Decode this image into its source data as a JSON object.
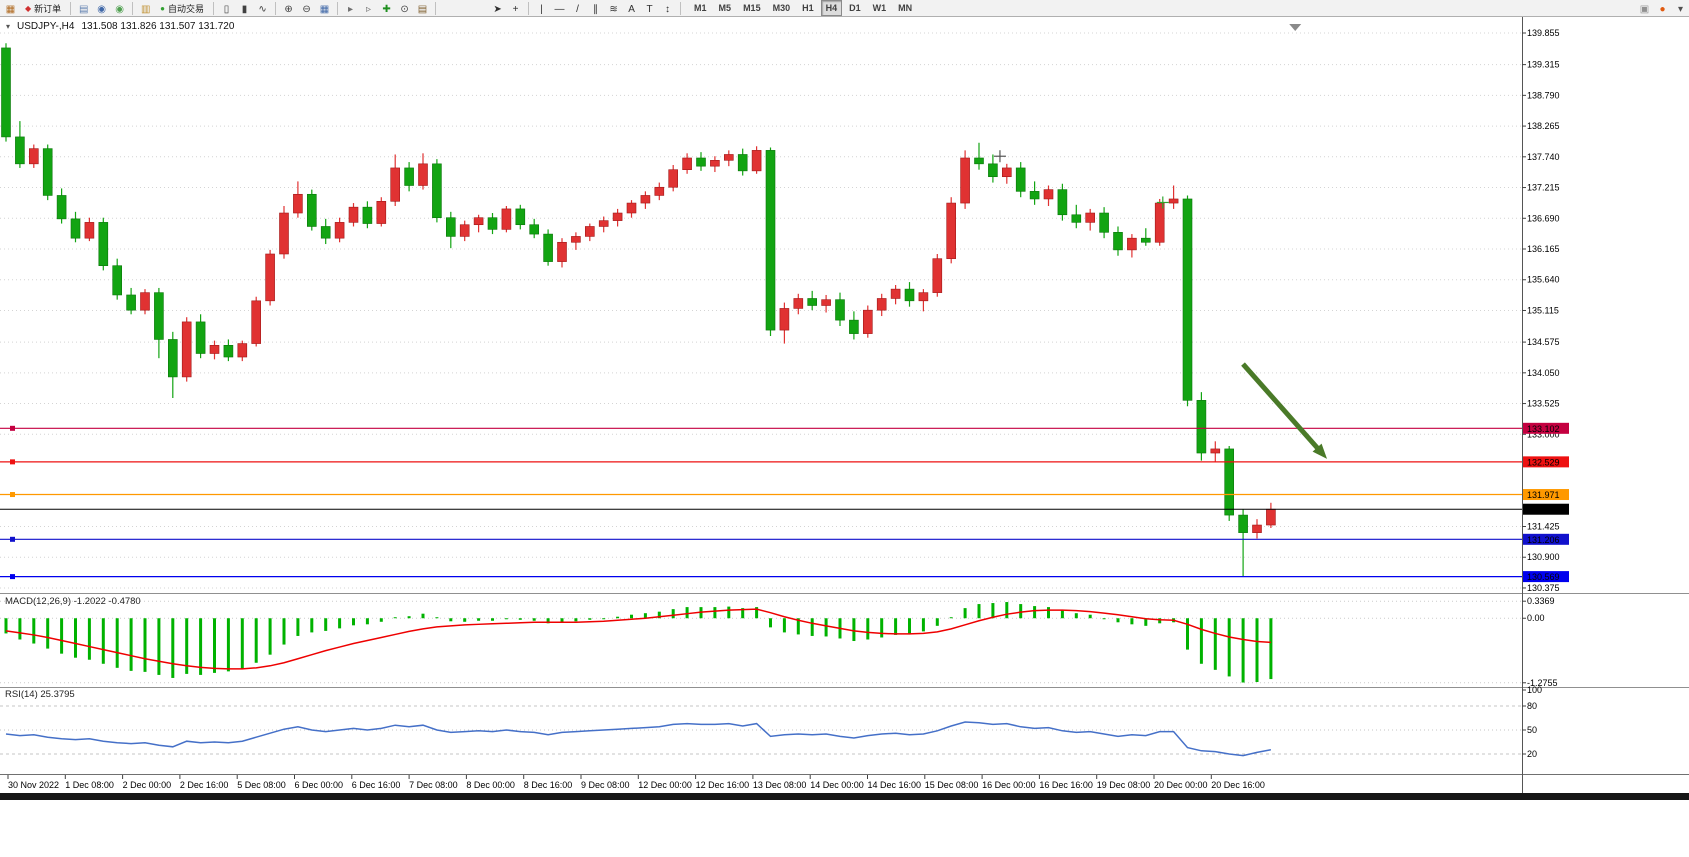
{
  "window": {
    "bg": "#ffffff",
    "toolbar_bg": "#f2f2f2"
  },
  "toolbar": {
    "new_order": "新订单",
    "auto_trading": "自动交易",
    "timeframes": [
      "M1",
      "M5",
      "M15",
      "M30",
      "H1",
      "H4",
      "D1",
      "W1",
      "MN"
    ],
    "active_timeframe": "H4",
    "items": [
      {
        "k": "icon",
        "n": "new-chart-icon",
        "g": "▦",
        "c": "#b06a20"
      },
      {
        "k": "button",
        "n": "new-order-button",
        "ig": "◆",
        "ic": "#d03030",
        "label": "新订单"
      },
      {
        "k": "sep"
      },
      {
        "k": "icon",
        "n": "charts-list-icon",
        "g": "▤",
        "c": "#6080b0"
      },
      {
        "k": "icon",
        "n": "market-watch-icon",
        "g": "◉",
        "c": "#4068a8"
      },
      {
        "k": "icon",
        "n": "navigator-icon",
        "g": "◉",
        "c": "#50a050"
      },
      {
        "k": "sep"
      },
      {
        "k": "icon",
        "n": "terminal-icon",
        "g": "▥",
        "c": "#c09030"
      },
      {
        "k": "button",
        "n": "auto-trading-button",
        "ig": "●",
        "ic": "#30a030",
        "label": "自动交易"
      },
      {
        "k": "sep"
      },
      {
        "k": "icon",
        "n": "bar-chart-type-icon",
        "g": "▯",
        "c": "#404040"
      },
      {
        "k": "icon",
        "n": "candlestick-type-icon",
        "g": "▮",
        "c": "#404040"
      },
      {
        "k": "icon",
        "n": "line-chart-type-icon",
        "g": "∿",
        "c": "#404040"
      },
      {
        "k": "sep"
      },
      {
        "k": "icon",
        "n": "zoom-in-icon",
        "g": "⊕",
        "c": "#404040"
      },
      {
        "k": "icon",
        "n": "zoom-out-icon",
        "g": "⊖",
        "c": "#404040"
      },
      {
        "k": "icon",
        "n": "tile-windows-icon",
        "g": "▦",
        "c": "#4068a8"
      },
      {
        "k": "sep"
      },
      {
        "k": "icon",
        "n": "auto-scroll-icon",
        "g": "▸",
        "c": "#707070"
      },
      {
        "k": "icon",
        "n": "chart-shift-icon",
        "g": "▹",
        "c": "#707070"
      },
      {
        "k": "icon",
        "n": "indicators-icon",
        "g": "✚",
        "c": "#209020"
      },
      {
        "k": "icon",
        "n": "period-selector-icon",
        "g": "⊙",
        "c": "#404040"
      },
      {
        "k": "icon",
        "n": "template-icon",
        "g": "▤",
        "c": "#806030"
      },
      {
        "k": "sep"
      },
      {
        "k": "gap",
        "w": 48
      },
      {
        "k": "icon",
        "n": "cursor-icon",
        "g": "➤",
        "c": "#303030"
      },
      {
        "k": "icon",
        "n": "crosshair-icon",
        "g": "+",
        "c": "#303030"
      },
      {
        "k": "sep"
      },
      {
        "k": "icon",
        "n": "vertical-line-icon",
        "g": "|",
        "c": "#303030"
      },
      {
        "k": "icon",
        "n": "horizontal-line-icon",
        "g": "—",
        "c": "#303030"
      },
      {
        "k": "icon",
        "n": "trendline-icon",
        "g": "/",
        "c": "#303030"
      },
      {
        "k": "icon",
        "n": "equidistant-channel-icon",
        "g": "∥",
        "c": "#303030"
      },
      {
        "k": "icon",
        "n": "fibonacci-icon",
        "g": "≋",
        "c": "#303030"
      },
      {
        "k": "icon",
        "n": "text-icon",
        "g": "A",
        "c": "#303030"
      },
      {
        "k": "icon",
        "n": "text-label-icon",
        "g": "T",
        "c": "#303030"
      },
      {
        "k": "icon",
        "n": "arrows-tool-icon",
        "g": "↕",
        "c": "#303030"
      },
      {
        "k": "sep"
      },
      {
        "k": "tf"
      },
      {
        "k": "gapflex"
      },
      {
        "k": "icon",
        "n": "community-icon",
        "g": "▣",
        "c": "#909090"
      },
      {
        "k": "icon",
        "n": "notification-dot-icon",
        "g": "●",
        "c": "#e05a10"
      },
      {
        "k": "icon",
        "n": "toolbar-overflow-icon",
        "g": "▾",
        "c": "#505050"
      }
    ]
  },
  "chart_header": {
    "menu_glyph": "▾",
    "symbol": "USDJPY-,H4",
    "ohlc": "131.508 131.826 131.507 131.720"
  },
  "price_axis": {
    "ticks": [
      "139.855",
      "139.315",
      "138.790",
      "138.265",
      "137.740",
      "137.215",
      "136.690",
      "136.165",
      "135.640",
      "135.115",
      "134.575",
      "134.050",
      "133.525",
      "133.000",
      "131.425",
      "130.900",
      "130.375"
    ]
  },
  "levels": [
    {
      "label": "133.102",
      "price": 133.102,
      "color": "#c40040",
      "handle": true
    },
    {
      "label": "132.529",
      "price": 132.529,
      "color": "#ee1111",
      "handle": true
    },
    {
      "label": "131.971",
      "price": 131.971,
      "color": "#ff9900",
      "handle": true
    },
    {
      "label": "131.720",
      "price": 131.72,
      "color": "#000000",
      "current": true
    },
    {
      "label": "131.206",
      "price": 131.206,
      "color": "#1111cc",
      "handle": true
    },
    {
      "label": "130.569",
      "price": 130.569,
      "color": "#0000ee",
      "handle": true
    }
  ],
  "macd": {
    "label": "MACD(12,26,9) -1.2022 -0.4780",
    "ticks": [
      "0.3369",
      "0.00",
      "-1.2755"
    ],
    "hist_color": "#00b200",
    "signal_color": "#ee0000"
  },
  "rsi": {
    "label": "RSI(14) 25.3795",
    "ticks": [
      "100",
      "80",
      "50",
      "20"
    ],
    "line_color": "#4570c8"
  },
  "time_axis": [
    "30 Nov 2022",
    "1 Dec 08:00",
    "2 Dec 00:00",
    "2 Dec 16:00",
    "5 Dec 08:00",
    "6 Dec 00:00",
    "6 Dec 16:00",
    "7 Dec 08:00",
    "8 Dec 00:00",
    "8 Dec 16:00",
    "9 Dec 08:00",
    "12 Dec 00:00",
    "12 Dec 16:00",
    "13 Dec 08:00",
    "14 Dec 00:00",
    "14 Dec 16:00",
    "15 Dec 08:00",
    "16 Dec 00:00",
    "16 Dec 16:00",
    "19 Dec 08:00",
    "20 Dec 00:00",
    "20 Dec 16:00"
  ],
  "annotations": {
    "arrow": {
      "color": "#4a7a28",
      "from_xf": 0.8167,
      "from_price": 134.2,
      "to_xf": 0.8719,
      "to_price": 132.58
    },
    "cross_markers": [
      {
        "xf": 0.657,
        "price": 137.75,
        "color": "#555555"
      },
      {
        "xf": 0.764,
        "price": 136.96,
        "color": "#2fa52f"
      }
    ],
    "shift_marker_xf": 0.851
  },
  "chart_data": [
    {
      "type": "candlestick",
      "title": "USDJPY- H4",
      "up_color": "#e03232",
      "up_border": "#a01818",
      "down_color": "#12a412",
      "down_border": "#0a760a",
      "ylim": [
        130.375,
        139.855
      ],
      "ohlc": [
        [
          139.6,
          139.68,
          138.0,
          138.08
        ],
        [
          138.08,
          138.35,
          137.55,
          137.62
        ],
        [
          137.62,
          137.95,
          137.55,
          137.88
        ],
        [
          137.88,
          137.95,
          137.0,
          137.08
        ],
        [
          137.08,
          137.2,
          136.6,
          136.68
        ],
        [
          136.68,
          136.8,
          136.28,
          136.35
        ],
        [
          136.35,
          136.7,
          136.3,
          136.62
        ],
        [
          136.62,
          136.7,
          135.8,
          135.88
        ],
        [
          135.88,
          136.0,
          135.3,
          135.38
        ],
        [
          135.38,
          135.5,
          135.05,
          135.12
        ],
        [
          135.12,
          135.48,
          135.05,
          135.42
        ],
        [
          135.42,
          135.5,
          134.3,
          134.62
        ],
        [
          134.62,
          134.75,
          133.62,
          133.98
        ],
        [
          133.98,
          135.0,
          133.9,
          134.92
        ],
        [
          134.92,
          135.05,
          134.3,
          134.38
        ],
        [
          134.38,
          134.6,
          134.28,
          134.52
        ],
        [
          134.52,
          134.62,
          134.25,
          134.32
        ],
        [
          134.32,
          134.6,
          134.25,
          134.55
        ],
        [
          134.55,
          135.35,
          134.5,
          135.28
        ],
        [
          135.28,
          136.15,
          135.2,
          136.08
        ],
        [
          136.08,
          136.9,
          136.0,
          136.78
        ],
        [
          136.78,
          137.32,
          136.7,
          137.1
        ],
        [
          137.1,
          137.18,
          136.48,
          136.55
        ],
        [
          136.55,
          136.68,
          136.25,
          136.35
        ],
        [
          136.35,
          136.7,
          136.28,
          136.62
        ],
        [
          136.62,
          136.95,
          136.55,
          136.88
        ],
        [
          136.88,
          136.98,
          136.52,
          136.6
        ],
        [
          136.6,
          137.05,
          136.55,
          136.98
        ],
        [
          136.98,
          137.78,
          136.9,
          137.55
        ],
        [
          137.55,
          137.65,
          137.15,
          137.25
        ],
        [
          137.25,
          137.8,
          137.18,
          137.62
        ],
        [
          137.62,
          137.7,
          136.62,
          136.7
        ],
        [
          136.7,
          136.8,
          136.18,
          136.38
        ],
        [
          136.38,
          136.65,
          136.3,
          136.58
        ],
        [
          136.58,
          136.75,
          136.45,
          136.7
        ],
        [
          136.7,
          136.78,
          136.42,
          136.5
        ],
        [
          136.5,
          136.9,
          136.45,
          136.85
        ],
        [
          136.85,
          136.92,
          136.5,
          136.58
        ],
        [
          136.58,
          136.68,
          136.35,
          136.42
        ],
        [
          136.42,
          136.5,
          135.88,
          135.95
        ],
        [
          135.95,
          136.35,
          135.85,
          136.28
        ],
        [
          136.28,
          136.45,
          136.15,
          136.38
        ],
        [
          136.38,
          136.6,
          136.3,
          136.55
        ],
        [
          136.55,
          136.72,
          136.45,
          136.65
        ],
        [
          136.65,
          136.85,
          136.55,
          136.78
        ],
        [
          136.78,
          137.0,
          136.7,
          136.95
        ],
        [
          136.95,
          137.15,
          136.85,
          137.08
        ],
        [
          137.08,
          137.3,
          137.0,
          137.22
        ],
        [
          137.22,
          137.6,
          137.15,
          137.52
        ],
        [
          137.52,
          137.8,
          137.45,
          137.72
        ],
        [
          137.72,
          137.82,
          137.5,
          137.58
        ],
        [
          137.58,
          137.75,
          137.48,
          137.68
        ],
        [
          137.68,
          137.85,
          137.58,
          137.78
        ],
        [
          137.78,
          137.88,
          137.42,
          137.5
        ],
        [
          137.5,
          137.92,
          137.45,
          137.85
        ],
        [
          137.85,
          137.9,
          134.68,
          134.78
        ],
        [
          134.78,
          135.25,
          134.55,
          135.15
        ],
        [
          135.15,
          135.4,
          135.05,
          135.32
        ],
        [
          135.32,
          135.45,
          135.12,
          135.2
        ],
        [
          135.2,
          135.38,
          135.08,
          135.3
        ],
        [
          135.3,
          135.42,
          134.85,
          134.95
        ],
        [
          134.95,
          135.1,
          134.62,
          134.72
        ],
        [
          134.72,
          135.2,
          134.65,
          135.12
        ],
        [
          135.12,
          135.4,
          135.02,
          135.32
        ],
        [
          135.32,
          135.55,
          135.22,
          135.48
        ],
        [
          135.48,
          135.6,
          135.18,
          135.28
        ],
        [
          135.28,
          135.48,
          135.1,
          135.42
        ],
        [
          135.42,
          136.08,
          135.35,
          136.0
        ],
        [
          136.0,
          137.05,
          135.92,
          136.95
        ],
        [
          136.95,
          137.85,
          136.85,
          137.72
        ],
        [
          137.72,
          137.98,
          137.52,
          137.62
        ],
        [
          137.62,
          137.78,
          137.3,
          137.4
        ],
        [
          137.4,
          137.62,
          137.28,
          137.55
        ],
        [
          137.55,
          137.65,
          137.05,
          137.15
        ],
        [
          137.15,
          137.32,
          136.92,
          137.02
        ],
        [
          137.02,
          137.25,
          136.9,
          137.18
        ],
        [
          137.18,
          137.28,
          136.65,
          136.75
        ],
        [
          136.75,
          136.92,
          136.52,
          136.62
        ],
        [
          136.62,
          136.85,
          136.48,
          136.78
        ],
        [
          136.78,
          136.88,
          136.35,
          136.45
        ],
        [
          136.45,
          136.55,
          136.05,
          136.15
        ],
        [
          136.15,
          136.42,
          136.02,
          136.35
        ],
        [
          136.35,
          136.52,
          136.22,
          136.28
        ],
        [
          136.28,
          137.02,
          136.22,
          136.95
        ],
        [
          136.95,
          137.25,
          136.85,
          137.02
        ],
        [
          137.02,
          137.08,
          133.48,
          133.58
        ],
        [
          133.58,
          133.72,
          132.55,
          132.68
        ],
        [
          132.68,
          132.88,
          132.52,
          132.75
        ],
        [
          132.75,
          132.8,
          131.52,
          131.62
        ],
        [
          131.62,
          131.72,
          130.57,
          131.32
        ],
        [
          131.32,
          131.55,
          131.22,
          131.45
        ],
        [
          131.45,
          131.83,
          131.4,
          131.72
        ]
      ]
    },
    {
      "type": "bar",
      "name": "MACD histogram",
      "ylim": [
        -1.3,
        0.4
      ],
      "values": [
        -0.3,
        -0.42,
        -0.5,
        -0.6,
        -0.7,
        -0.78,
        -0.82,
        -0.9,
        -0.98,
        -1.04,
        -1.06,
        -1.12,
        -1.18,
        -1.1,
        -1.12,
        -1.08,
        -1.05,
        -1.0,
        -0.88,
        -0.72,
        -0.52,
        -0.35,
        -0.28,
        -0.25,
        -0.2,
        -0.14,
        -0.12,
        -0.07,
        0.02,
        0.04,
        0.09,
        0.02,
        -0.06,
        -0.07,
        -0.05,
        -0.05,
        -0.02,
        -0.03,
        -0.05,
        -0.1,
        -0.08,
        -0.06,
        -0.03,
        0.0,
        0.03,
        0.07,
        0.1,
        0.13,
        0.18,
        0.22,
        0.22,
        0.22,
        0.23,
        0.2,
        0.22,
        -0.18,
        -0.28,
        -0.32,
        -0.35,
        -0.36,
        -0.4,
        -0.45,
        -0.42,
        -0.38,
        -0.33,
        -0.3,
        -0.26,
        -0.15,
        0.02,
        0.2,
        0.28,
        0.3,
        0.32,
        0.28,
        0.24,
        0.22,
        0.16,
        0.1,
        0.07,
        0.0,
        -0.08,
        -0.12,
        -0.15,
        -0.1,
        -0.08,
        -0.62,
        -0.9,
        -1.02,
        -1.15,
        -1.27,
        -1.26,
        -1.2022
      ]
    },
    {
      "type": "line",
      "name": "MACD signal",
      "values": [
        -0.25,
        -0.29,
        -0.33,
        -0.38,
        -0.44,
        -0.5,
        -0.56,
        -0.62,
        -0.68,
        -0.74,
        -0.8,
        -0.85,
        -0.9,
        -0.94,
        -0.97,
        -0.99,
        -1.0,
        -1.0,
        -0.98,
        -0.94,
        -0.88,
        -0.8,
        -0.72,
        -0.64,
        -0.57,
        -0.5,
        -0.44,
        -0.38,
        -0.32,
        -0.26,
        -0.21,
        -0.17,
        -0.15,
        -0.13,
        -0.12,
        -0.11,
        -0.1,
        -0.09,
        -0.08,
        -0.08,
        -0.08,
        -0.08,
        -0.07,
        -0.06,
        -0.04,
        -0.02,
        0.0,
        0.03,
        0.06,
        0.09,
        0.12,
        0.14,
        0.16,
        0.17,
        0.18,
        0.11,
        0.03,
        -0.04,
        -0.1,
        -0.15,
        -0.2,
        -0.25,
        -0.28,
        -0.3,
        -0.31,
        -0.31,
        -0.3,
        -0.27,
        -0.21,
        -0.13,
        -0.05,
        0.02,
        0.08,
        0.12,
        0.15,
        0.16,
        0.16,
        0.15,
        0.13,
        0.1,
        0.07,
        0.03,
        -0.01,
        -0.03,
        -0.04,
        -0.12,
        -0.22,
        -0.3,
        -0.37,
        -0.42,
        -0.46,
        -0.478
      ]
    },
    {
      "type": "line",
      "name": "RSI(14)",
      "ylim": [
        0,
        100
      ],
      "values": [
        45,
        43,
        44,
        41,
        39,
        38,
        39,
        36,
        34,
        33,
        34,
        31,
        29,
        36,
        34,
        35,
        34,
        36,
        41,
        46,
        51,
        54,
        50,
        48,
        50,
        52,
        50,
        52,
        56,
        54,
        56,
        50,
        47,
        48,
        49,
        48,
        50,
        48,
        47,
        44,
        47,
        48,
        49,
        50,
        51,
        52,
        53,
        54,
        57,
        58,
        57,
        57,
        58,
        55,
        58,
        42,
        44,
        45,
        44,
        45,
        42,
        40,
        43,
        45,
        46,
        44,
        45,
        49,
        55,
        60,
        59,
        57,
        58,
        54,
        52,
        53,
        49,
        47,
        48,
        45,
        42,
        44,
        43,
        48,
        48,
        28,
        24,
        23,
        20,
        18,
        22,
        25.3795
      ]
    }
  ]
}
